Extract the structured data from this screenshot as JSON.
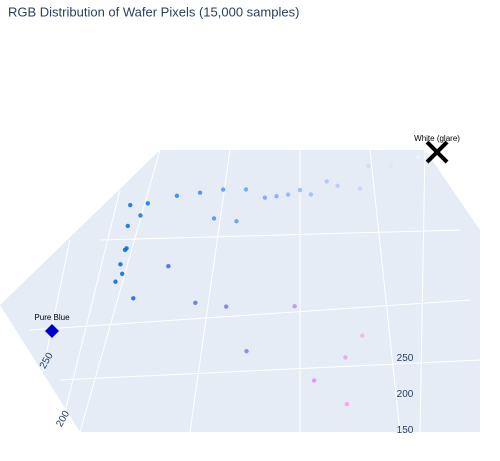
{
  "chart_data": {
    "type": "scatter3d",
    "title": "RGB Distribution of Wafer Pixels (15,000 samples)",
    "x": [
      0,
      0,
      0,
      0,
      0,
      5,
      10,
      0,
      15,
      40,
      60,
      80,
      80,
      100,
      100,
      120,
      130,
      140,
      150,
      160,
      170,
      180,
      200,
      200,
      220,
      230,
      240,
      250,
      60,
      120,
      150,
      30,
      90,
      180,
      240,
      255,
      250,
      220
    ],
    "y": [
      110,
      110,
      110,
      110,
      100,
      105,
      115,
      105,
      118,
      130,
      140,
      140,
      150,
      150,
      160,
      165,
      170,
      175,
      180,
      185,
      195,
      200,
      210,
      220,
      230,
      235,
      245,
      250,
      100,
      120,
      120,
      90,
      110,
      150,
      160,
      150,
      170,
      140
    ],
    "z": [
      235,
      228,
      220,
      212,
      215,
      225,
      232,
      218,
      236,
      240,
      242,
      240,
      244,
      240,
      245,
      246,
      247,
      248,
      250,
      249,
      251,
      250,
      250,
      252,
      253,
      253,
      254,
      255,
      240,
      235,
      230,
      225,
      232,
      238,
      235,
      230,
      240,
      232
    ],
    "xlim": [
      0,
      255
    ],
    "ylim": [
      0,
      255
    ],
    "zlim": [
      0,
      255
    ],
    "xticks": [
      200,
      250
    ],
    "yticks": [
      150,
      200,
      250
    ],
    "annotations": [
      {
        "text": "Pure Blue",
        "x": 0,
        "y": 0,
        "z": 255,
        "color": "#0000cc"
      },
      {
        "text": "White (glare)",
        "x": 255,
        "y": 255,
        "z": 255,
        "color": "#000000"
      }
    ]
  }
}
